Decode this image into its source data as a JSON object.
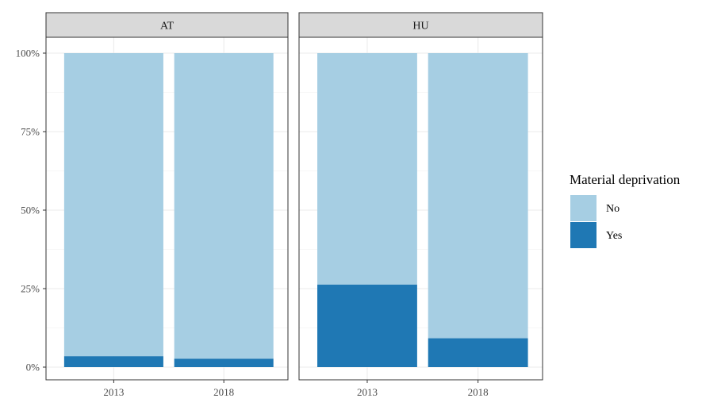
{
  "chart_data": {
    "type": "bar",
    "stacked": true,
    "y_format": "percent",
    "ylim": [
      0,
      100
    ],
    "y_ticks": [
      0,
      25,
      50,
      75,
      100
    ],
    "y_tick_labels": [
      "0%",
      "25%",
      "50%",
      "75%",
      "100%"
    ],
    "grid": true,
    "legend": {
      "title": "Material deprivation",
      "placement": "right",
      "entries": [
        "No",
        "Yes"
      ]
    },
    "categories": [
      "2013",
      "2018"
    ],
    "facets": [
      {
        "label": "AT",
        "series": [
          {
            "name": "No",
            "values": [
              96.5,
              97.3
            ]
          },
          {
            "name": "Yes",
            "values": [
              3.5,
              2.7
            ]
          }
        ]
      },
      {
        "label": "HU",
        "series": [
          {
            "name": "No",
            "values": [
              73.7,
              90.8
            ]
          },
          {
            "name": "Yes",
            "values": [
              26.3,
              9.2
            ]
          }
        ]
      }
    ],
    "colors": {
      "No": "#a6cee3",
      "Yes": "#1f78b4"
    },
    "xlabel": "",
    "ylabel": ""
  }
}
